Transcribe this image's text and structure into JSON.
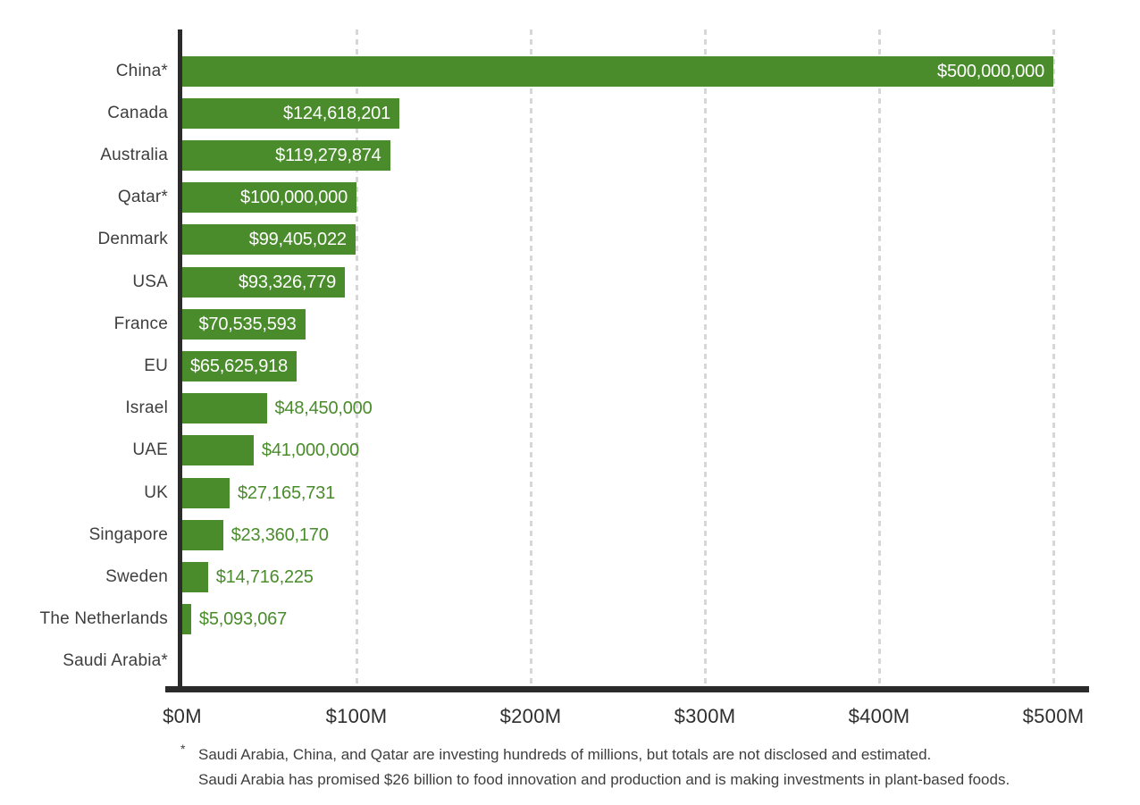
{
  "chart_data": {
    "type": "bar",
    "orientation": "horizontal",
    "categories": [
      "China*",
      "Canada",
      "Australia",
      "Qatar*",
      "Denmark",
      "USA",
      "France",
      "EU",
      "Israel",
      "UAE",
      "UK",
      "Singapore",
      "Sweden",
      "The Netherlands",
      "Saudi Arabia*"
    ],
    "values": [
      500000000,
      124618201,
      119279874,
      100000000,
      99405022,
      93326779,
      70535593,
      65625918,
      48450000,
      41000000,
      27165731,
      23360170,
      14716225,
      5093067,
      null
    ],
    "value_labels": [
      "$500,000,000",
      "$124,618,201",
      "$119,279,874",
      "$100,000,000",
      "$99,405,022",
      "$93,326,779",
      "$70,535,593",
      "$65,625,918",
      "$48,450,000",
      "$41,000,000",
      "$27,165,731",
      "$23,360,170",
      "$14,716,225",
      "$5,093,067",
      ""
    ],
    "label_positions": [
      "inside",
      "inside",
      "inside",
      "inside",
      "inside",
      "inside",
      "inside",
      "inside",
      "outside",
      "outside",
      "outside",
      "outside",
      "outside",
      "outside",
      "none"
    ],
    "x_tick_labels": [
      "$0M",
      "$100M",
      "$200M",
      "$300M",
      "$400M",
      "$500M"
    ],
    "xlim": [
      0,
      500000000
    ],
    "grid": "vertical dashed gridlines at $100M intervals",
    "legend": "none",
    "colors": {
      "bar": "#4a8c2c",
      "value_label_inside": "#ffffff",
      "value_label_outside": "#4a8c2c",
      "category_label": "#3e3e3e",
      "axis": "#2b2b2b",
      "gridline": "#d7d7d7",
      "background": "#ffffff"
    }
  },
  "footnote": {
    "marker": "*",
    "line1": "Saudi Arabia, China, and Qatar are investing hundreds of millions, but totals are not disclosed and estimated.",
    "line2": "Saudi Arabia has promised $26 billion to food innovation and production and is making investments in plant-based foods."
  }
}
